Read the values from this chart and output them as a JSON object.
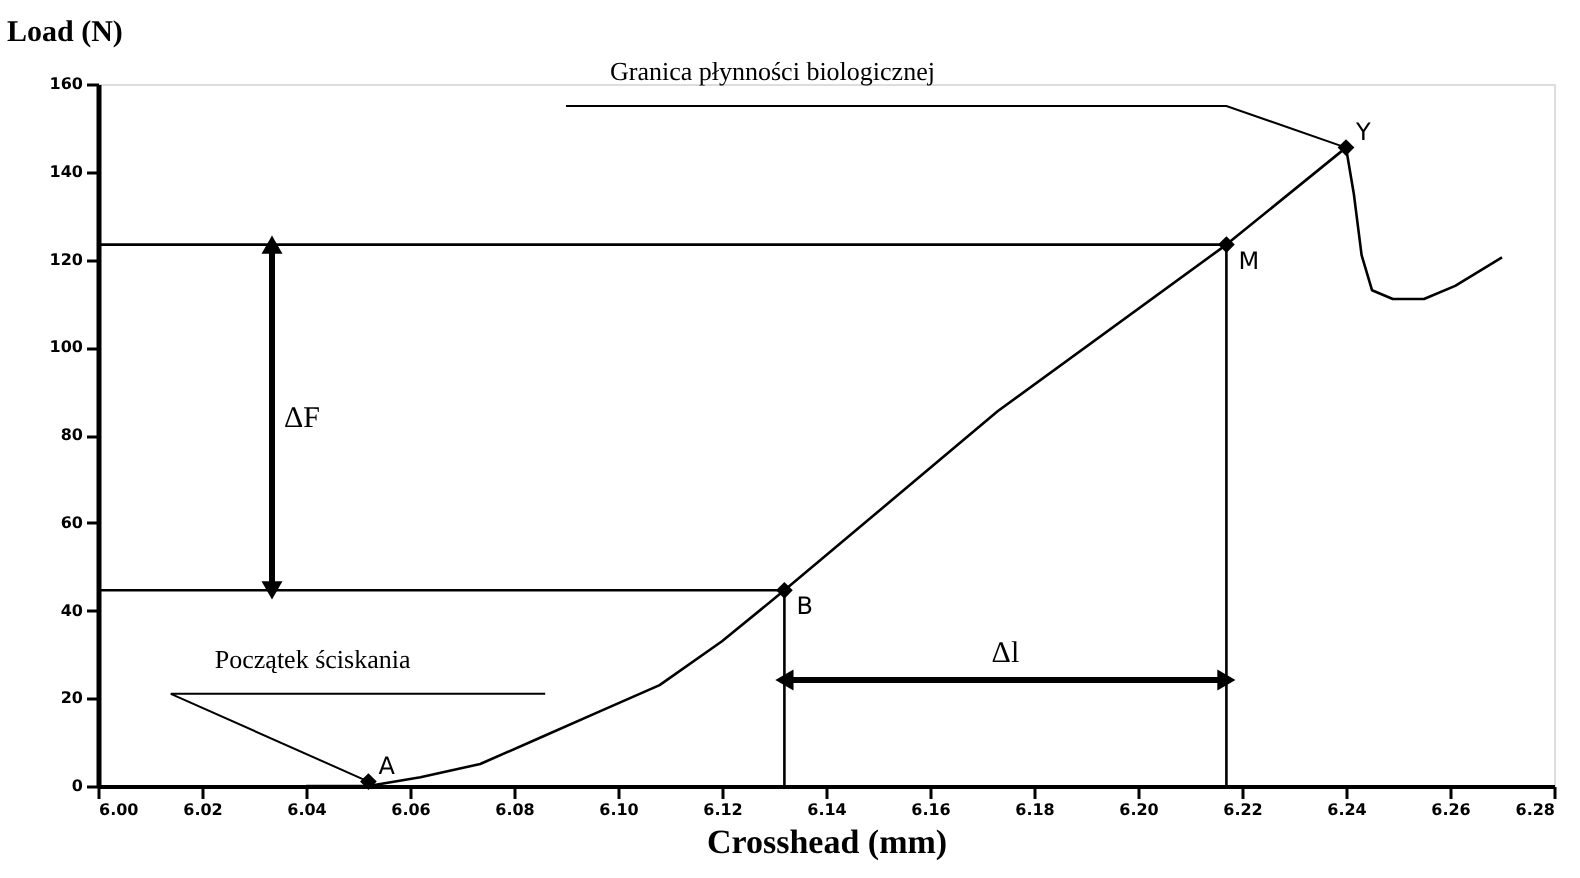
{
  "chart_data": {
    "type": "line",
    "xlabel": "Crosshead (mm)",
    "ylabel": "Load (N)",
    "series": [
      {
        "color": "#000000",
        "marker": "none",
        "x": [
          6.04,
          6.052,
          6.062,
          6.0735,
          6.085,
          6.0965,
          6.108,
          6.12,
          6.132,
          6.173,
          6.217,
          6.24,
          6.2415,
          6.243,
          6.245,
          6.249,
          6.255,
          6.261,
          6.27
        ],
        "values": [
          0,
          0,
          2,
          5,
          11,
          17,
          23,
          33,
          44.6,
          85.4,
          123.4,
          145.5,
          135,
          121,
          113,
          111,
          111,
          114,
          120.5
        ]
      },
      {
        "type": "scatter",
        "color": "#000000",
        "marker": "diamond",
        "x": [
          6.052,
          6.132,
          6.217,
          6.24
        ],
        "values": [
          1,
          44.6,
          123.4,
          145.5
        ]
      },
      {
        "color": "#000000",
        "marker": "none",
        "x": [
          6.0,
          6.132,
          6.132
        ],
        "values": [
          44.6,
          44.6,
          0
        ]
      },
      {
        "color": "#000000",
        "marker": "none",
        "x": [
          6.0,
          6.217,
          6.217
        ],
        "values": [
          123.4,
          123.4,
          0
        ]
      }
    ],
    "annotations": [
      {
        "text": "A",
        "x": 6.052,
        "y": 1
      },
      {
        "text": "B",
        "x": 6.132,
        "y": 44.6
      },
      {
        "text": "M",
        "x": 6.217,
        "y": 123.4
      },
      {
        "text": "Y",
        "x": 6.24,
        "y": 145.5
      },
      {
        "text": "Początek ściskania",
        "x": 6.052,
        "y": 1
      },
      {
        "text": "Granica płynności biologicznej",
        "x": 6.24,
        "y": 145.5
      },
      "ΔF",
      "Δl"
    ],
    "xlim": [
      6.0,
      6.28
    ],
    "xticks": [
      {
        "value": 6.0,
        "label": "6.00"
      },
      6.02,
      6.04,
      6.06,
      6.08,
      {
        "value": 6.1,
        "label": "6.10"
      },
      6.12,
      6.14,
      6.16,
      6.18,
      {
        "value": 6.2,
        "label": "6.20"
      },
      6.22,
      6.24,
      6.26,
      6.28
    ],
    "ylim": [
      0,
      160
    ],
    "yticks": [
      0,
      20,
      40,
      60,
      80,
      100,
      120,
      140,
      160
    ],
    "grid": false
  }
}
